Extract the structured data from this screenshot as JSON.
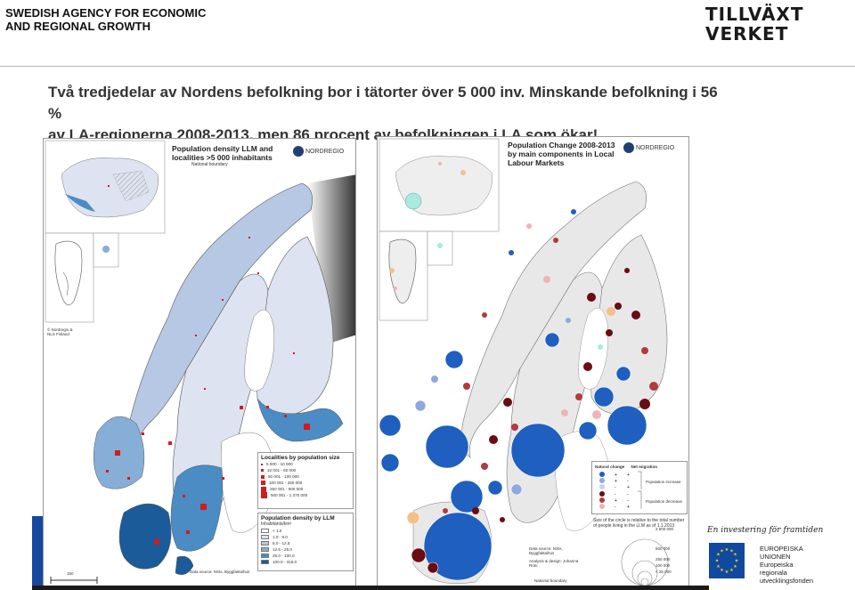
{
  "header": {
    "agency_line1": "SWEDISH AGENCY FOR ECONOMIC",
    "agency_line2": "AND REGIONAL GROWTH",
    "logo_line1": "TILLVÄXT",
    "logo_line2": "VERKET"
  },
  "headline": {
    "line1": "Två tredjedelar av Nordens befolkning bor i tätorter över 5 000 inv. Minskande befolkning i 56 %",
    "line2": "av LA-regionerna 2008-2013, men 86 procent av befolkningen i LA som ökar!"
  },
  "left_map": {
    "title_line1": "Population density LLM and",
    "title_line2": "localities >5 000 inhabitants",
    "boundary_label": "National boundary",
    "brand": "NORDREGIO",
    "copyright_line1": "© Nordregio &",
    "copyright_line2": "NLS Finland",
    "localities_legend": {
      "title": "Localities by population size",
      "items": [
        "5 000 - 10 000",
        "10 001 - 50 000",
        "50 001 - 100 000",
        "100 001 - 250 000",
        "250 001 - 500 000",
        "500 001 - 1 370 000"
      ]
    },
    "density_legend": {
      "title": "Population density by LLM",
      "subtitle": "Inhabitants/km²",
      "items": [
        "< 1.0",
        "1.0 - 8.0",
        "8.0 - 12.5",
        "12.5 - 25.0",
        "25.0 - 100.0",
        "100.0 - 315.0"
      ],
      "colors": [
        "#ffffff",
        "#dde3f1",
        "#b7c8e4",
        "#86aed6",
        "#4a8cc3",
        "#1c5b9a"
      ]
    },
    "source_text": "Data source: NSIs, Byggfaktaihus",
    "scale_label": "150"
  },
  "right_map": {
    "title_line1": "Population Change 2008-2013",
    "title_line2": "by main components in Local",
    "title_line3": "Labour Markets",
    "brand": "NORDREGIO",
    "components_legend": {
      "col1": "Natural change",
      "col2": "Net migration",
      "increase_label": "Population increase",
      "decrease_label": "Population decrease",
      "increase_colors": [
        "#1e5fbf",
        "#8ea9de",
        "#c4d1ee"
      ],
      "decrease_colors": [
        "#6b0b12",
        "#b23a42",
        "#f0b4b4"
      ]
    },
    "size_note": "Size of the circle is relative to the total number of people living in the LLM as of 1.1.2013",
    "size_values": [
      "2 500 000",
      "500 000",
      "250 000",
      "100 000",
      "< 25 000"
    ],
    "source_text": "Data source: NSIs, Byggfaktaihus",
    "design_text": "Analysis & design: Johanna Roto",
    "boundary_label": "National boundary"
  },
  "footer": {
    "investment": "En investering för framtiden",
    "eu_line1": "EUROPEISKA",
    "eu_line2": "UNIONEN",
    "eu_line3": "Europeiska",
    "eu_line4": "regionala",
    "eu_line5": "utvecklingsfonden"
  }
}
